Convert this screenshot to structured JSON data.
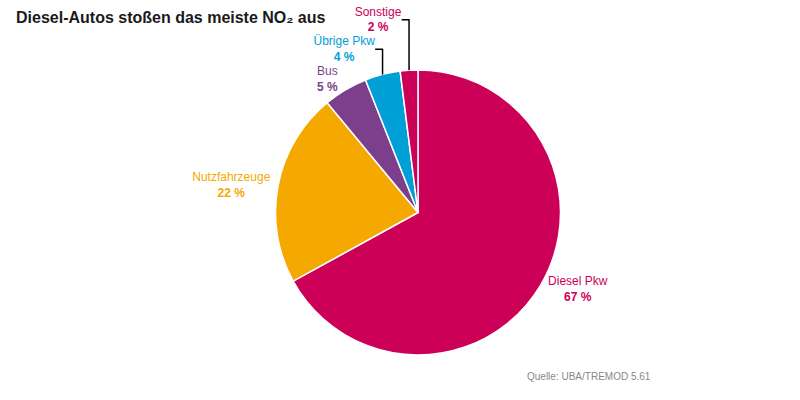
{
  "chart_data": {
    "type": "pie",
    "title": "Diesel-Autos stoßen das meiste NO₂ aus",
    "categories": [
      "Diesel Pkw",
      "Nutzfahrzeuge",
      "Bus",
      "Übrige Pkw",
      "Sonstige"
    ],
    "values": [
      67,
      22,
      5,
      4,
      2
    ],
    "value_labels": [
      "67 %",
      "22 %",
      "5 %",
      "4 %",
      "2 %"
    ],
    "colors": [
      "#cc0057",
      "#f5a800",
      "#7b3f8c",
      "#00a0d6",
      "#cc0057"
    ],
    "annotations": [
      "Quelle: UBA/TREMOD 5.61"
    ]
  }
}
